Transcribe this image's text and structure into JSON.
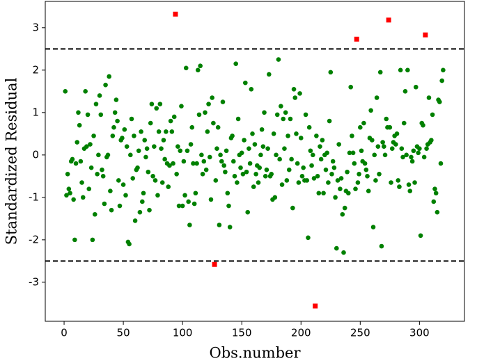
{
  "chart_data": {
    "type": "scatter",
    "xlabel": "Obs.number",
    "ylabel": "Standardized Residual",
    "xlim": [
      -15.9,
      338
    ],
    "ylim": [
      -3.92,
      3.62
    ],
    "xticks": [
      0,
      50,
      100,
      150,
      200,
      250,
      300
    ],
    "yticks": [
      -3,
      -2,
      -1,
      0,
      1,
      2,
      3
    ],
    "hlines": [
      2.5,
      -2.5
    ],
    "hline_color": "#000000",
    "series": [
      {
        "color": "#008000",
        "marker": "circle",
        "x": [
          1,
          2,
          3,
          4,
          5,
          6,
          7,
          8,
          9,
          10,
          11,
          12,
          13,
          14,
          15,
          16,
          17,
          18,
          19,
          20,
          21,
          22,
          23,
          24,
          25,
          26,
          27,
          28,
          29,
          30,
          31,
          32,
          33,
          34,
          35,
          36,
          37,
          38,
          39,
          40,
          41,
          42,
          43,
          44,
          45,
          46,
          47,
          48,
          49,
          50,
          51,
          52,
          53,
          54,
          55,
          56,
          57,
          58,
          59,
          60,
          61,
          62,
          63,
          64,
          65,
          66,
          67,
          68,
          69,
          70,
          71,
          72,
          73,
          74,
          75,
          76,
          77,
          78,
          79,
          80,
          81,
          82,
          83,
          84,
          85,
          86,
          87,
          88,
          89,
          90,
          91,
          92,
          93,
          95,
          96,
          97,
          98,
          99,
          100,
          101,
          102,
          103,
          104,
          105,
          106,
          107,
          108,
          109,
          110,
          111,
          112,
          113,
          114,
          115,
          116,
          117,
          118,
          119,
          120,
          121,
          122,
          123,
          124,
          125,
          126,
          128,
          129,
          130,
          131,
          132,
          133,
          134,
          135,
          136,
          137,
          138,
          139,
          140,
          141,
          142,
          143,
          144,
          145,
          146,
          147,
          148,
          149,
          150,
          151,
          152,
          153,
          154,
          155,
          156,
          157,
          158,
          159,
          160,
          161,
          162,
          163,
          164,
          165,
          166,
          167,
          168,
          169,
          170,
          171,
          172,
          173,
          174,
          175,
          176,
          177,
          178,
          179,
          180,
          181,
          182,
          183,
          184,
          185,
          186,
          187,
          188,
          189,
          190,
          191,
          192,
          193,
          194,
          195,
          196,
          197,
          198,
          199,
          200,
          201,
          202,
          203,
          204,
          205,
          206,
          207,
          208,
          209,
          210,
          211,
          213,
          214,
          215,
          216,
          217,
          218,
          219,
          220,
          221,
          222,
          223,
          224,
          225,
          226,
          227,
          228,
          229,
          230,
          231,
          232,
          233,
          234,
          235,
          236,
          237,
          238,
          239,
          240,
          241,
          242,
          243,
          244,
          245,
          246,
          248,
          249,
          250,
          251,
          252,
          253,
          254,
          255,
          256,
          257,
          258,
          259,
          260,
          261,
          262,
          263,
          264,
          265,
          266,
          267,
          268,
          269,
          270,
          271,
          272,
          273,
          275,
          276,
          277,
          278,
          279,
          280,
          281,
          282,
          283,
          284,
          285,
          286,
          287,
          288,
          289,
          290,
          291,
          292,
          293,
          294,
          295,
          296,
          297,
          298,
          299,
          300,
          301,
          302,
          303,
          304,
          306,
          307,
          308,
          309,
          310,
          311,
          312,
          313,
          314,
          315,
          316,
          317,
          318,
          319,
          320
        ],
        "values": [
          1.5,
          -0.95,
          -0.45,
          -0.8,
          -0.9,
          -0.15,
          -0.1,
          -1.05,
          -2.0,
          -0.2,
          0.3,
          1.0,
          0.7,
          -0.15,
          -0.65,
          -1.0,
          0.15,
          1.5,
          0.2,
          0.95,
          -0.8,
          0.25,
          -0.3,
          -2.0,
          0.45,
          -1.4,
          1.2,
          -0.45,
          0.0,
          1.4,
          0.95,
          -0.35,
          -0.5,
          -1.15,
          1.65,
          -0.05,
          0.0,
          1.85,
          -0.85,
          -1.3,
          0.45,
          0.65,
          1.0,
          1.3,
          0.8,
          -0.6,
          -1.2,
          0.35,
          0.4,
          -0.7,
          0.6,
          -0.95,
          0.2,
          -2.05,
          -2.1,
          0.0,
          0.85,
          -0.55,
          0.45,
          -1.55,
          -0.35,
          -0.3,
          0.1,
          -1.35,
          0.55,
          -1.1,
          -0.9,
          0.35,
          -0.05,
          0.15,
          -0.4,
          -1.3,
          0.75,
          1.2,
          -0.5,
          0.2,
          -0.6,
          1.1,
          -0.95,
          0.55,
          1.2,
          0.15,
          -0.65,
          0.35,
          -0.1,
          0.55,
          -0.2,
          -0.75,
          -0.25,
          0.8,
          0.55,
          -0.2,
          0.9,
          -0.45,
          0.2,
          -1.2,
          0.1,
          1.15,
          -1.2,
          -0.15,
          -0.95,
          2.05,
          0.1,
          -1.1,
          -1.65,
          0.25,
          0.65,
          -0.2,
          -1.15,
          -0.9,
          -0.2,
          2.0,
          0.95,
          2.1,
          0.0,
          -0.45,
          -0.15,
          1.0,
          -0.35,
          0.55,
          1.2,
          -0.05,
          -1.05,
          1.35,
          0.75,
          -0.6,
          0.15,
          0.65,
          -1.65,
          0.0,
          -0.15,
          1.25,
          -0.25,
          -0.4,
          0.1,
          -0.9,
          -1.2,
          -1.7,
          0.4,
          0.45,
          -0.15,
          -0.5,
          2.15,
          -0.65,
          0.85,
          0.0,
          -0.3,
          0.05,
          -0.45,
          0.35,
          1.7,
          -0.4,
          -1.35,
          0.15,
          -0.2,
          1.55,
          0.5,
          -0.75,
          0.25,
          -0.45,
          -0.25,
          -0.65,
          -0.3,
          0.0,
          0.6,
          0.2,
          1.0,
          -0.5,
          -0.35,
          0.15,
          1.9,
          -0.5,
          -0.45,
          -1.05,
          0.5,
          -1.0,
          0.0,
          0.95,
          2.25,
          -0.1,
          1.15,
          -0.7,
          0.85,
          0.15,
          1.0,
          -0.6,
          0.45,
          -0.35,
          0.85,
          -0.1,
          -1.25,
          1.55,
          1.35,
          0.5,
          -0.2,
          -0.65,
          1.45,
          0.4,
          -0.5,
          -0.3,
          -0.6,
          0.95,
          -0.6,
          -1.95,
          0.65,
          0.1,
          -0.25,
          0.0,
          -0.55,
          0.45,
          -0.5,
          -0.9,
          0.2,
          -0.1,
          0.35,
          -0.9,
          0.0,
          -0.35,
          0.05,
          -0.65,
          0.8,
          1.95,
          -0.45,
          -0.15,
          -0.3,
          -1.0,
          -2.2,
          -0.6,
          0.25,
          -0.8,
          -0.55,
          -1.4,
          -2.3,
          -1.25,
          -0.85,
          -0.4,
          -0.9,
          0.05,
          1.6,
          0.45,
          0.05,
          -0.2,
          -0.8,
          -0.65,
          -0.45,
          0.65,
          0.1,
          -0.15,
          0.75,
          -0.2,
          -0.35,
          -0.5,
          -0.85,
          0.4,
          1.05,
          0.35,
          -1.7,
          0.0,
          -0.6,
          1.35,
          0.2,
          -0.45,
          1.95,
          -2.15,
          0.3,
          0.2,
          0.0,
          0.85,
          0.65,
          0.65,
          -0.65,
          0.15,
          0.3,
          0.45,
          0.25,
          0.5,
          -0.6,
          -0.75,
          2.0,
          0.15,
          -0.05,
          0.75,
          1.5,
          0.0,
          2.0,
          -0.7,
          -0.85,
          -0.05,
          -0.15,
          0.1,
          -0.65,
          1.6,
          0.2,
          0.05,
          0.15,
          -1.9,
          0.75,
          0.7,
          -0.05,
          0.15,
          0.25,
          1.35,
          0.3,
          0.35,
          0.95,
          -1.1,
          -0.8,
          -0.9,
          -1.35,
          1.3,
          1.25,
          -0.2,
          1.75,
          2.0
        ]
      },
      {
        "color": "#ff0000",
        "marker": "square",
        "x": [
          94,
          127,
          212,
          247,
          274,
          305
        ],
        "values": [
          3.32,
          -2.58,
          -3.56,
          2.73,
          3.18,
          2.83
        ]
      }
    ]
  }
}
